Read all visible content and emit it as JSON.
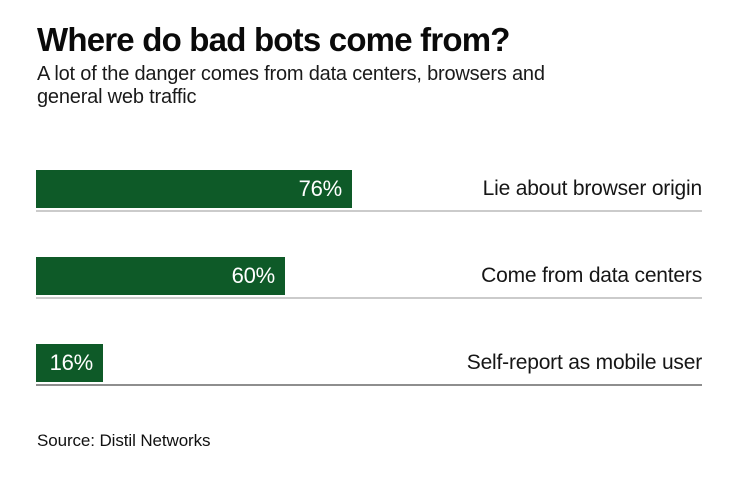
{
  "header": {
    "title": "Where do bad bots come from?",
    "subtitle": "A lot of the danger comes from data centers, browsers and\ngeneral web traffic"
  },
  "chart_data": {
    "type": "bar",
    "orientation": "horizontal",
    "title": "Where do bad bots come from?",
    "subtitle": "A lot of the danger comes from data centers, browsers and general web traffic",
    "categories": [
      "Lie about browser origin",
      "Come from data centers",
      "Self-report as mobile user"
    ],
    "values": [
      76,
      60,
      16
    ],
    "value_labels": [
      "76%",
      "60%",
      "16%"
    ],
    "xlabel": "",
    "ylabel": "",
    "xlim": [
      0,
      100
    ],
    "grid": false,
    "legend": false,
    "value_label_position": "inside-right",
    "category_label_position": "right-aligned-outside",
    "colors": {
      "bar": "#0e5a28",
      "value_label": "#ffffff",
      "separator_line": "#cbcbcb",
      "axis_line": "#8e8e8e",
      "text": "#161616"
    }
  },
  "footer": {
    "source": "Source: Distil Networks"
  }
}
